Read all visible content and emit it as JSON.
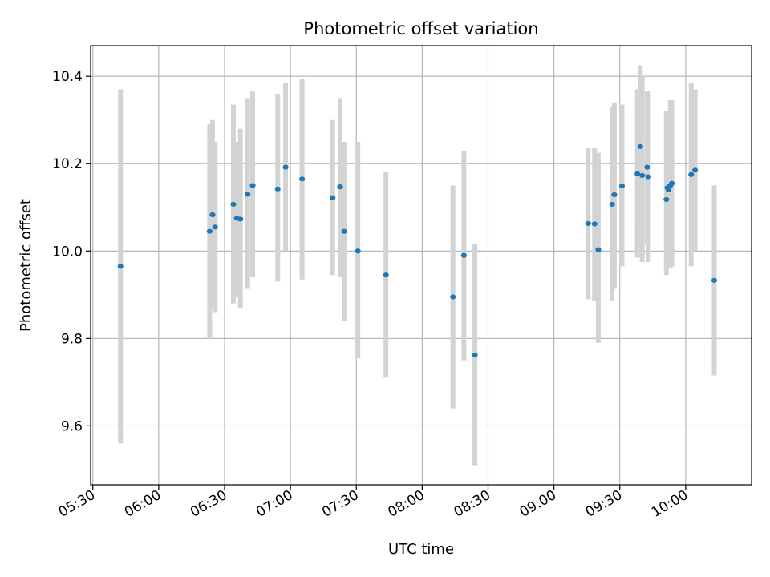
{
  "chart_data": {
    "type": "scatter",
    "title": "Photometric offset variation",
    "xlabel": "UTC time",
    "ylabel": "Photometric offset",
    "xlim_minutes": [
      1529,
      1830
    ],
    "ylim": [
      9.465,
      10.47
    ],
    "grid": true,
    "x_ticks": [
      {
        "minutes": 1530,
        "label": "05:30"
      },
      {
        "minutes": 1560,
        "label": "06:00"
      },
      {
        "minutes": 1590,
        "label": "06:30"
      },
      {
        "minutes": 1620,
        "label": "07:00"
      },
      {
        "minutes": 1650,
        "label": "07:30"
      },
      {
        "minutes": 1680,
        "label": "08:00"
      },
      {
        "minutes": 1710,
        "label": "08:30"
      },
      {
        "minutes": 1740,
        "label": "09:00"
      },
      {
        "minutes": 1770,
        "label": "09:30"
      },
      {
        "minutes": 1800,
        "label": "10:00"
      }
    ],
    "y_ticks": [
      {
        "value": 9.6,
        "label": "9.6"
      },
      {
        "value": 9.8,
        "label": "9.8"
      },
      {
        "value": 10.0,
        "label": "10.0"
      },
      {
        "value": 10.2,
        "label": "10.2"
      },
      {
        "value": 10.4,
        "label": "10.4"
      }
    ],
    "marker_color": "#1f77b4",
    "errorbar_color": "#d3d3d3",
    "points": [
      {
        "time": "05:42.6",
        "x": 1542.6,
        "y": 9.965,
        "err_low": 9.56,
        "err_high": 10.37
      },
      {
        "time": "06:23.2",
        "x": 1583.2,
        "y": 10.045,
        "err_low": 9.8,
        "err_high": 10.29
      },
      {
        "time": "06:24.5",
        "x": 1584.5,
        "y": 10.083,
        "err_low": 9.87,
        "err_high": 10.3
      },
      {
        "time": "06:25.7",
        "x": 1585.7,
        "y": 10.055,
        "err_low": 9.86,
        "err_high": 10.25
      },
      {
        "time": "06:34.0",
        "x": 1594.0,
        "y": 10.107,
        "err_low": 9.88,
        "err_high": 10.335
      },
      {
        "time": "06:35.6",
        "x": 1595.6,
        "y": 10.075,
        "err_low": 9.895,
        "err_high": 10.25
      },
      {
        "time": "06:37.2",
        "x": 1597.2,
        "y": 10.073,
        "err_low": 9.87,
        "err_high": 10.28
      },
      {
        "time": "06:40.5",
        "x": 1600.5,
        "y": 10.13,
        "err_low": 9.915,
        "err_high": 10.35
      },
      {
        "time": "06:42.8",
        "x": 1602.8,
        "y": 10.15,
        "err_low": 9.94,
        "err_high": 10.365
      },
      {
        "time": "06:54.2",
        "x": 1614.2,
        "y": 10.142,
        "err_low": 9.93,
        "err_high": 10.36
      },
      {
        "time": "06:57.8",
        "x": 1617.8,
        "y": 10.192,
        "err_low": 10.0,
        "err_high": 10.385
      },
      {
        "time": "07:05.3",
        "x": 1625.3,
        "y": 10.165,
        "err_low": 9.935,
        "err_high": 10.395
      },
      {
        "time": "07:19.2",
        "x": 1639.2,
        "y": 10.122,
        "err_low": 9.945,
        "err_high": 10.3
      },
      {
        "time": "07:22.6",
        "x": 1642.6,
        "y": 10.147,
        "err_low": 9.94,
        "err_high": 10.35
      },
      {
        "time": "07:24.5",
        "x": 1644.5,
        "y": 10.045,
        "err_low": 9.84,
        "err_high": 10.25
      },
      {
        "time": "07:30.7",
        "x": 1650.7,
        "y": 10.0,
        "err_low": 9.755,
        "err_high": 10.25
      },
      {
        "time": "07:43.5",
        "x": 1663.5,
        "y": 9.945,
        "err_low": 9.71,
        "err_high": 10.18
      },
      {
        "time": "08:14.0",
        "x": 1694.0,
        "y": 9.895,
        "err_low": 9.64,
        "err_high": 10.15
      },
      {
        "time": "08:19.0",
        "x": 1699.0,
        "y": 9.99,
        "err_low": 9.75,
        "err_high": 10.23
      },
      {
        "time": "08:24.0",
        "x": 1704.0,
        "y": 9.762,
        "err_low": 9.51,
        "err_high": 10.015
      },
      {
        "time": "09:15.6",
        "x": 1755.6,
        "y": 10.063,
        "err_low": 9.89,
        "err_high": 10.235
      },
      {
        "time": "09:18.5",
        "x": 1758.5,
        "y": 10.062,
        "err_low": 9.885,
        "err_high": 10.235
      },
      {
        "time": "09:20.2",
        "x": 1760.2,
        "y": 10.003,
        "err_low": 9.79,
        "err_high": 10.225
      },
      {
        "time": "09:26.5",
        "x": 1766.5,
        "y": 10.107,
        "err_low": 9.885,
        "err_high": 10.33
      },
      {
        "time": "09:27.5",
        "x": 1767.5,
        "y": 10.129,
        "err_low": 9.915,
        "err_high": 10.34
      },
      {
        "time": "09:31.0",
        "x": 1771.0,
        "y": 10.149,
        "err_low": 9.965,
        "err_high": 10.335
      },
      {
        "time": "09:38.0",
        "x": 1778.0,
        "y": 10.177,
        "err_low": 9.985,
        "err_high": 10.37
      },
      {
        "time": "09:39.3",
        "x": 1779.3,
        "y": 10.239,
        "err_low": 10.05,
        "err_high": 10.425
      },
      {
        "time": "09:40.2",
        "x": 1780.2,
        "y": 10.173,
        "err_low": 9.975,
        "err_high": 10.4
      },
      {
        "time": "09:42.5",
        "x": 1782.5,
        "y": 10.192,
        "err_low": 10.015,
        "err_high": 10.365
      },
      {
        "time": "09:43.0",
        "x": 1783.0,
        "y": 10.17,
        "err_low": 9.975,
        "err_high": 10.365
      },
      {
        "time": "09:51.2",
        "x": 1791.2,
        "y": 10.118,
        "err_low": 9.945,
        "err_high": 10.32
      },
      {
        "time": "09:51.7",
        "x": 1791.7,
        "y": 10.145,
        "err_low": 9.96,
        "err_high": 10.32
      },
      {
        "time": "09:52.2",
        "x": 1792.2,
        "y": 10.14,
        "err_low": 9.96,
        "err_high": 10.32
      },
      {
        "time": "09:53.0",
        "x": 1793.0,
        "y": 10.15,
        "err_low": 9.96,
        "err_high": 10.345
      },
      {
        "time": "09:53.7",
        "x": 1793.7,
        "y": 10.155,
        "err_low": 9.965,
        "err_high": 10.345
      },
      {
        "time": "10:02.5",
        "x": 1802.5,
        "y": 10.175,
        "err_low": 9.965,
        "err_high": 10.385
      },
      {
        "time": "10:04.3",
        "x": 1804.3,
        "y": 10.185,
        "err_low": 10.0,
        "err_high": 10.37
      },
      {
        "time": "10:13.0",
        "x": 1813.0,
        "y": 9.933,
        "err_low": 9.715,
        "err_high": 10.15
      }
    ]
  }
}
